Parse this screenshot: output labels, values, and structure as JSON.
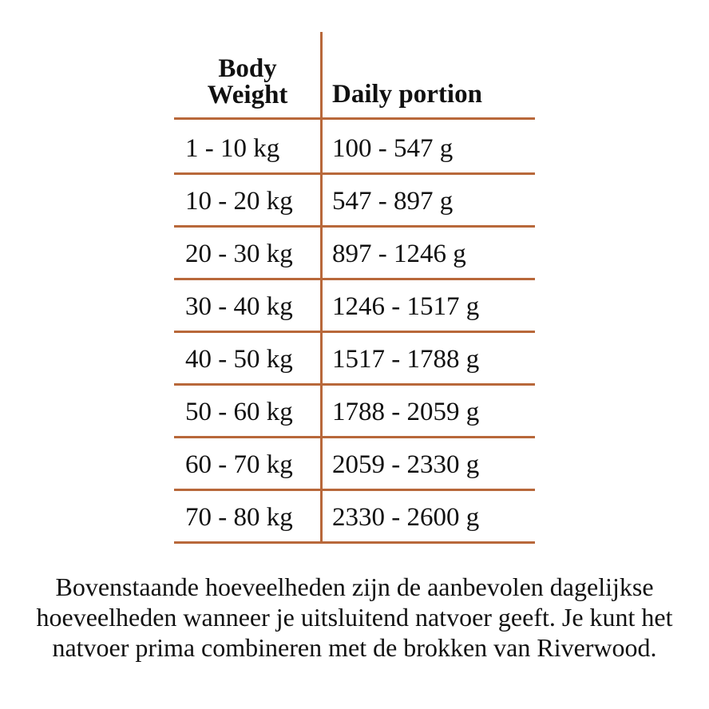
{
  "table": {
    "header": [
      "Body\nWeight",
      "Daily portion"
    ],
    "rows": [
      [
        "1 - 10 kg",
        "100 - 547 g"
      ],
      [
        "10 - 20 kg",
        "547 - 897 g"
      ],
      [
        "20 - 30 kg",
        "897 - 1246 g"
      ],
      [
        "30 - 40 kg",
        "1246 - 1517 g"
      ],
      [
        "40 - 50 kg",
        "1517 - 1788 g"
      ],
      [
        "50 - 60 kg",
        "1788 - 2059 g"
      ],
      [
        "60 - 70 kg",
        "2059 - 2330 g"
      ],
      [
        "70 - 80 kg",
        "2330 - 2600 g"
      ]
    ]
  },
  "note": "Bovenstaande hoeveelheden zijn de aanbevolen dagelijkse hoeveelheden wanneer je uitsluitend natvoer geeft. Je kunt het natvoer prima combineren met de brokken van Riverwood."
}
